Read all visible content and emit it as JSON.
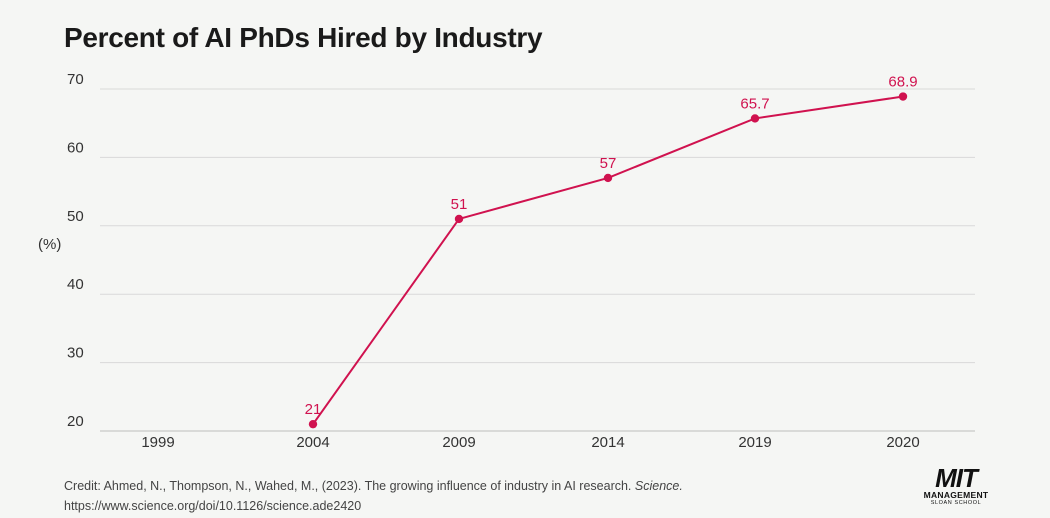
{
  "chart_data": {
    "type": "line",
    "title": "Percent of AI PhDs Hired by Industry",
    "ylabel": "(%)",
    "xlabel": "",
    "categories": [
      "1999",
      "2004",
      "2009",
      "2014",
      "2019",
      "2020"
    ],
    "series": [
      {
        "values": [
          null,
          21,
          51,
          57,
          65.7,
          68.9
        ]
      }
    ],
    "data_labels": [
      "",
      "21",
      "51",
      "57",
      "65.7",
      "68.9"
    ],
    "yticks": [
      20,
      30,
      40,
      50,
      60,
      70
    ],
    "ylim": [
      20,
      70
    ],
    "grid": true,
    "color": "#d0124f"
  },
  "credit": {
    "text": "Credit: Ahmed, N., Thompson, N., Wahed, M., (2023). The growing influence of industry in AI research.",
    "journal": "Science.",
    "url": "https://www.science.org/doi/10.1126/science.ade2420"
  },
  "logo": {
    "line1": "MIT",
    "line2": "MANAGEMENT",
    "line3": "SLOAN SCHOOL"
  }
}
